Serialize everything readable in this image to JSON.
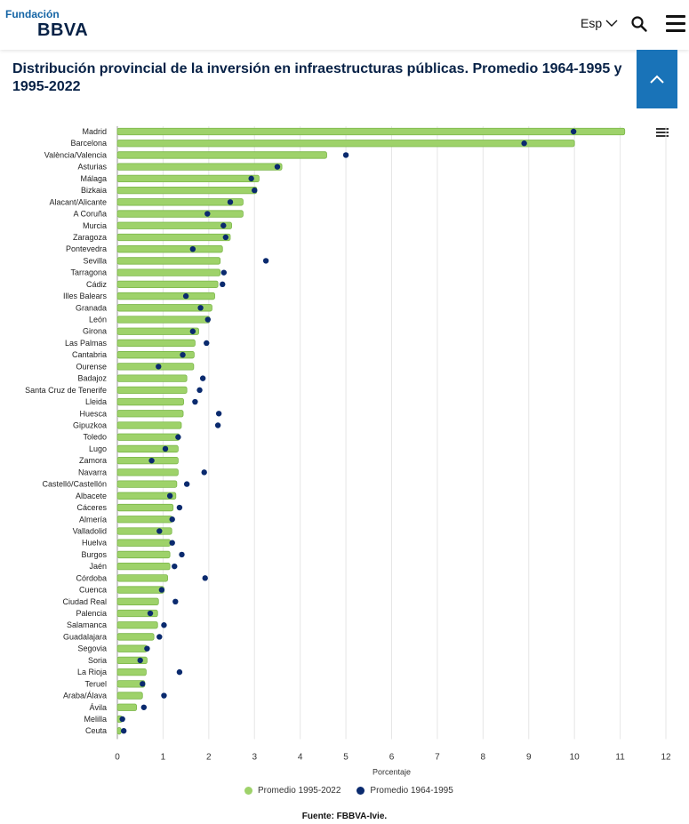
{
  "header": {
    "logo_top": "Fundación",
    "logo_main": "BBVA",
    "lang_label": "Esp",
    "icons": [
      "chevron-down-icon",
      "search-icon",
      "hamburger-menu-icon",
      "chevron-up-icon"
    ]
  },
  "colors": {
    "bar": "#9ED26A",
    "bar_border": "#7AB648",
    "dot": "#0A2A6E",
    "accent": "#1973B8"
  },
  "legend": {
    "bar_label": "Promedio 1995-2022",
    "dot_label": "Promedio 1964-1995"
  },
  "source": "Fuente: FBBVA-Ivie.",
  "chart_data": {
    "type": "bar",
    "orientation": "horizontal",
    "title": "Distribución provincial de la inversión en infraestructuras públicas. Promedio 1964-1995 y 1995-2022",
    "xlabel": "Porcentaje",
    "xlim": [
      0,
      12
    ],
    "xticks": [
      0,
      1,
      2,
      3,
      4,
      5,
      6,
      7,
      8,
      9,
      10,
      11,
      12
    ],
    "grid": "vertical",
    "legend_position": "bottom",
    "categories": [
      "Madrid",
      "Barcelona",
      "València/Valencia",
      "Asturias",
      "Málaga",
      "Bizkaia",
      "Alacant/Alicante",
      "A Coruña",
      "Murcia",
      "Zaragoza",
      "Pontevedra",
      "Sevilla",
      "Tarragona",
      "Cádiz",
      "Illes Balears",
      "Granada",
      "León",
      "Girona",
      "Las Palmas",
      "Cantabria",
      "Ourense",
      "Badajoz",
      "Santa Cruz de Tenerife",
      "Lleida",
      "Huesca",
      "Gipuzkoa",
      "Toledo",
      "Lugo",
      "Zamora",
      "Navarra",
      "Castelló/Castellón",
      "Albacete",
      "Cáceres",
      "Almería",
      "Valladolid",
      "Huelva",
      "Burgos",
      "Jaén",
      "Córdoba",
      "Cuenca",
      "Ciudad Real",
      "Palencia",
      "Salamanca",
      "Guadalajara",
      "Segovia",
      "Soria",
      "La Rioja",
      "Teruel",
      "Araba/Álava",
      "Ávila",
      "Melilla",
      "Ceuta"
    ],
    "series": [
      {
        "name": "Promedio 1995-2022",
        "type": "bar",
        "values": [
          11.1,
          10.0,
          4.58,
          3.6,
          3.1,
          3.05,
          2.75,
          2.75,
          2.5,
          2.47,
          2.3,
          2.25,
          2.25,
          2.2,
          2.13,
          2.07,
          2.02,
          1.78,
          1.7,
          1.68,
          1.67,
          1.52,
          1.52,
          1.45,
          1.44,
          1.4,
          1.36,
          1.33,
          1.33,
          1.33,
          1.3,
          1.28,
          1.22,
          1.2,
          1.19,
          1.16,
          1.15,
          1.15,
          1.1,
          1.02,
          0.9,
          0.88,
          0.88,
          0.8,
          0.65,
          0.65,
          0.63,
          0.6,
          0.55,
          0.42,
          0.1,
          0.08
        ]
      },
      {
        "name": "Promedio 1964-1995",
        "type": "scatter",
        "values": [
          9.98,
          8.9,
          5.0,
          3.5,
          2.93,
          3.0,
          2.47,
          1.97,
          2.32,
          2.37,
          1.65,
          3.25,
          2.33,
          2.3,
          1.5,
          1.82,
          1.98,
          1.65,
          1.95,
          1.43,
          0.9,
          1.87,
          1.8,
          1.7,
          2.22,
          2.2,
          1.33,
          1.05,
          0.75,
          1.9,
          1.52,
          1.15,
          1.36,
          1.2,
          0.92,
          1.2,
          1.41,
          1.25,
          1.92,
          0.97,
          1.27,
          0.72,
          1.02,
          0.92,
          0.65,
          0.5,
          1.36,
          0.55,
          1.02,
          0.58,
          0.11,
          0.14
        ]
      }
    ]
  }
}
